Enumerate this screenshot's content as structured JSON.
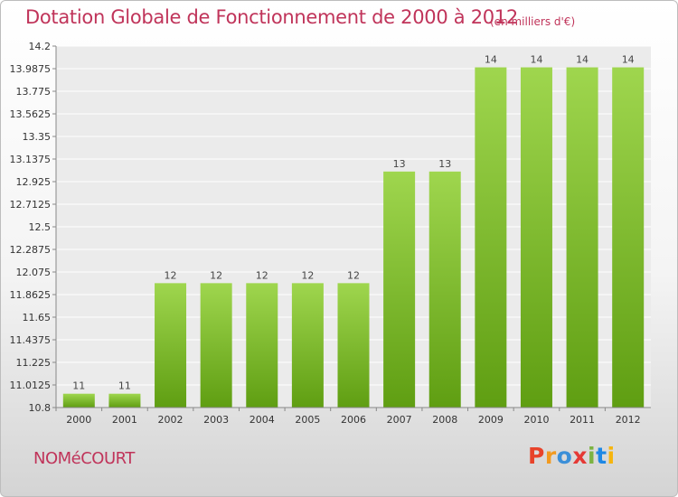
{
  "header": {
    "title": "Dotation Globale de Fonctionnement de 2000 à 2012",
    "unit": "(en milliers d'€)"
  },
  "footer": {
    "commune": "NOMéCOURT",
    "logo": [
      "P",
      "r",
      "o",
      "x",
      "i",
      "t",
      "i"
    ],
    "logo_colors": [
      "#e8432a",
      "#f29a1f",
      "#3b8fd8",
      "#e53935",
      "#7cb342",
      "#1e88e5",
      "#f6b50e"
    ]
  },
  "chart_data": {
    "type": "bar",
    "title": "Dotation Globale de Fonctionnement de 2000 à 2012",
    "categories": [
      "2000",
      "2001",
      "2002",
      "2003",
      "2004",
      "2005",
      "2006",
      "2007",
      "2008",
      "2009",
      "2010",
      "2011",
      "2012"
    ],
    "values": [
      11,
      11,
      12,
      12,
      12,
      12,
      12,
      13,
      13,
      14,
      14,
      14,
      14
    ],
    "data_labels": [
      "11",
      "11",
      "12",
      "12",
      "12",
      "12",
      "12",
      "13",
      "13",
      "14",
      "14",
      "14",
      "14"
    ],
    "plot_values": [
      10.93,
      10.93,
      11.97,
      11.97,
      11.97,
      11.97,
      11.97,
      13.02,
      13.02,
      14.0,
      14.0,
      14.0,
      14.0
    ],
    "yticks": [
      "14.2",
      "13.9875",
      "13.775",
      "13.5625",
      "13.35",
      "13.1375",
      "12.925",
      "12.7125",
      "12.5",
      "12.2875",
      "12.075",
      "11.8625",
      "11.65",
      "11.4375",
      "11.225",
      "11.0125",
      "10.8"
    ],
    "ylim": [
      10.8,
      14.2
    ],
    "grid": true,
    "bar_color": "#7cc130"
  }
}
